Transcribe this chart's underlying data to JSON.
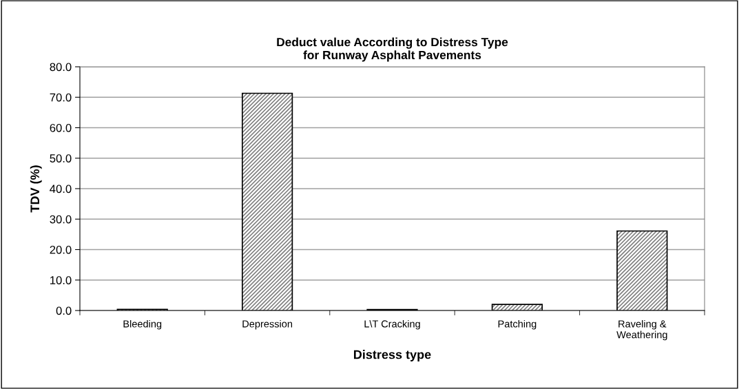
{
  "chart_data": {
    "type": "bar",
    "title": "Deduct value According to Distress Type\nfor Runway Asphalt Pavements",
    "xlabel": "Distress type",
    "ylabel": "TDV (%)",
    "categories": [
      "Bleeding",
      "Depression",
      "L\\T Cracking",
      "Patching",
      "Raveling &\nWeathering"
    ],
    "values": [
      0.4,
      71.3,
      0.3,
      2.0,
      26.1
    ],
    "color": "#808080",
    "ylim": [
      0,
      80
    ],
    "yticks": [
      {
        "value": 0,
        "label": "0.0"
      },
      {
        "value": 10,
        "label": "10.0"
      },
      {
        "value": 20,
        "label": "20.0"
      },
      {
        "value": 30,
        "label": "30.0"
      },
      {
        "value": 40,
        "label": "40.0"
      },
      {
        "value": 50,
        "label": "50.0"
      },
      {
        "value": 60,
        "label": "60.0"
      },
      {
        "value": 70,
        "label": "70.0"
      },
      {
        "value": 80,
        "label": "80.0"
      }
    ],
    "grid": "y"
  }
}
